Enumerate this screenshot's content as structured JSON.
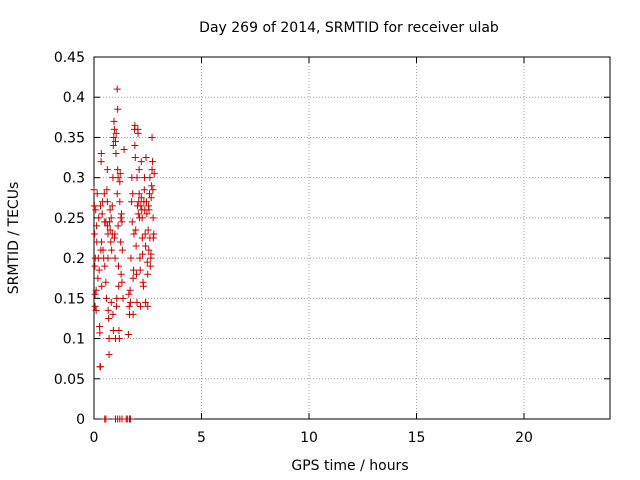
{
  "chart_data": {
    "type": "scatter",
    "title": "Day 269 of 2014, SRMTID for receiver ulab",
    "xlabel": "GPS time / hours",
    "ylabel": "SRMTID / TECUs",
    "xlim": [
      0,
      24
    ],
    "ylim": [
      0,
      0.45
    ],
    "xticks": [
      0,
      5,
      10,
      15,
      20
    ],
    "xtick_labels": [
      "0",
      "5",
      "10",
      "15",
      "20"
    ],
    "yticks": [
      0,
      0.05,
      0.1,
      0.15,
      0.2,
      0.25,
      0.3,
      0.35,
      0.4,
      0.45
    ],
    "ytick_labels": [
      "0",
      "0.05",
      "0.1",
      "0.15",
      "0.2",
      "0.25",
      "0.3",
      "0.35",
      "0.4",
      "0.45"
    ],
    "grid": true,
    "marker": "+",
    "color": "#cc0000",
    "points": [
      [
        0.0,
        0.285
      ],
      [
        0.02,
        0.265
      ],
      [
        0.03,
        0.23
      ],
      [
        0.04,
        0.19
      ],
      [
        0.05,
        0.155
      ],
      [
        0.05,
        0.14
      ],
      [
        0.06,
        0.2
      ],
      [
        0.08,
        0.26
      ],
      [
        0.1,
        0.16
      ],
      [
        0.1,
        0.135
      ],
      [
        0.12,
        0.24
      ],
      [
        0.13,
        0.22
      ],
      [
        0.15,
        0.28
      ],
      [
        0.18,
        0.175
      ],
      [
        0.2,
        0.2
      ],
      [
        0.22,
        0.25
      ],
      [
        0.24,
        0.185
      ],
      [
        0.26,
        0.115
      ],
      [
        0.27,
        0.107
      ],
      [
        0.28,
        0.065
      ],
      [
        0.3,
        0.065
      ],
      [
        0.3,
        0.265
      ],
      [
        0.32,
        0.21
      ],
      [
        0.33,
        0.32
      ],
      [
        0.34,
        0.33
      ],
      [
        0.35,
        0.22
      ],
      [
        0.36,
        0.165
      ],
      [
        0.38,
        0.255
      ],
      [
        0.4,
        0.27
      ],
      [
        0.42,
        0.21
      ],
      [
        0.45,
        0.2
      ],
      [
        0.48,
        0.28
      ],
      [
        0.5,
        0.245
      ],
      [
        0.5,
        0.19
      ],
      [
        0.55,
        0.245
      ],
      [
        0.55,
        0.17
      ],
      [
        0.58,
        0.15
      ],
      [
        0.6,
        0.285
      ],
      [
        0.62,
        0.31
      ],
      [
        0.62,
        0.27
      ],
      [
        0.63,
        0.24
      ],
      [
        0.65,
        0.23
      ],
      [
        0.65,
        0.2
      ],
      [
        0.66,
        0.135
      ],
      [
        0.68,
        0.125
      ],
      [
        0.7,
        0.08
      ],
      [
        0.7,
        0.1
      ],
      [
        0.72,
        0.245
      ],
      [
        0.75,
        0.26
      ],
      [
        0.75,
        0.235
      ],
      [
        0.78,
        0.22
      ],
      [
        0.8,
        0.25
      ],
      [
        0.8,
        0.145
      ],
      [
        0.82,
        0.21
      ],
      [
        0.85,
        0.265
      ],
      [
        0.85,
        0.23
      ],
      [
        0.88,
        0.3
      ],
      [
        0.88,
        0.13
      ],
      [
        0.9,
        0.11
      ],
      [
        0.9,
        0.34
      ],
      [
        0.92,
        0.35
      ],
      [
        0.93,
        0.37
      ],
      [
        0.95,
        0.36
      ],
      [
        0.95,
        0.225
      ],
      [
        0.97,
        0.23
      ],
      [
        0.98,
        0.2
      ],
      [
        1.0,
        0.345
      ],
      [
        1.0,
        0.1
      ],
      [
        1.02,
        0.33
      ],
      [
        1.03,
        0.355
      ],
      [
        1.05,
        0.14
      ],
      [
        1.06,
        0.15
      ],
      [
        1.08,
        0.41
      ],
      [
        1.08,
        0.28
      ],
      [
        1.1,
        0.31
      ],
      [
        1.1,
        0.385
      ],
      [
        1.12,
        0.3
      ],
      [
        1.12,
        0.24
      ],
      [
        1.14,
        0.19
      ],
      [
        1.15,
        0.165
      ],
      [
        1.16,
        0.11
      ],
      [
        1.18,
        0.1
      ],
      [
        1.2,
        0.27
      ],
      [
        1.2,
        0.295
      ],
      [
        1.22,
        0.305
      ],
      [
        1.24,
        0.22
      ],
      [
        1.25,
        0.25
      ],
      [
        1.26,
        0.18
      ],
      [
        1.28,
        0.255
      ],
      [
        1.3,
        0.245
      ],
      [
        1.3,
        0.17
      ],
      [
        1.32,
        0.21
      ],
      [
        1.35,
        0.15
      ],
      [
        1.4,
        0.335
      ],
      [
        1.6,
        0.105
      ],
      [
        1.62,
        0.155
      ],
      [
        1.64,
        0.14
      ],
      [
        1.65,
        0.13
      ],
      [
        1.68,
        0.16
      ],
      [
        1.7,
        0.145
      ],
      [
        1.72,
        0.2
      ],
      [
        1.75,
        0.27
      ],
      [
        1.76,
        0.3
      ],
      [
        1.78,
        0.245
      ],
      [
        1.8,
        0.28
      ],
      [
        1.82,
        0.13
      ],
      [
        1.82,
        0.175
      ],
      [
        1.84,
        0.185
      ],
      [
        1.86,
        0.23
      ],
      [
        1.88,
        0.36
      ],
      [
        1.9,
        0.365
      ],
      [
        1.9,
        0.34
      ],
      [
        1.92,
        0.325
      ],
      [
        1.94,
        0.235
      ],
      [
        1.96,
        0.215
      ],
      [
        1.98,
        0.18
      ],
      [
        2.0,
        0.3
      ],
      [
        2.0,
        0.145
      ],
      [
        2.02,
        0.265
      ],
      [
        2.04,
        0.36
      ],
      [
        2.05,
        0.355
      ],
      [
        2.06,
        0.255
      ],
      [
        2.08,
        0.27
      ],
      [
        2.1,
        0.31
      ],
      [
        2.1,
        0.28
      ],
      [
        2.12,
        0.25
      ],
      [
        2.14,
        0.2
      ],
      [
        2.15,
        0.185
      ],
      [
        2.16,
        0.14
      ],
      [
        2.18,
        0.265
      ],
      [
        2.2,
        0.32
      ],
      [
        2.2,
        0.275
      ],
      [
        2.22,
        0.26
      ],
      [
        2.24,
        0.25
      ],
      [
        2.25,
        0.225
      ],
      [
        2.26,
        0.205
      ],
      [
        2.28,
        0.17
      ],
      [
        2.3,
        0.165
      ],
      [
        2.32,
        0.27
      ],
      [
        2.34,
        0.285
      ],
      [
        2.35,
        0.3
      ],
      [
        2.36,
        0.26
      ],
      [
        2.38,
        0.23
      ],
      [
        2.4,
        0.215
      ],
      [
        2.4,
        0.145
      ],
      [
        2.42,
        0.325
      ],
      [
        2.44,
        0.27
      ],
      [
        2.46,
        0.255
      ],
      [
        2.48,
        0.195
      ],
      [
        2.5,
        0.18
      ],
      [
        2.5,
        0.14
      ],
      [
        2.52,
        0.235
      ],
      [
        2.54,
        0.265
      ],
      [
        2.55,
        0.21
      ],
      [
        2.56,
        0.26
      ],
      [
        2.58,
        0.28
      ],
      [
        2.6,
        0.3
      ],
      [
        2.6,
        0.225
      ],
      [
        2.62,
        0.19
      ],
      [
        2.64,
        0.2
      ],
      [
        2.65,
        0.205
      ],
      [
        2.66,
        0.275
      ],
      [
        2.68,
        0.29
      ],
      [
        2.7,
        0.31
      ],
      [
        2.7,
        0.35
      ],
      [
        2.72,
        0.32
      ],
      [
        2.74,
        0.285
      ],
      [
        2.75,
        0.25
      ],
      [
        2.76,
        0.225
      ],
      [
        2.78,
        0.23
      ],
      [
        2.8,
        0.305
      ],
      [
        0.5,
        0.0
      ],
      [
        0.55,
        0.0
      ],
      [
        1.0,
        0.0
      ],
      [
        1.1,
        0.0
      ],
      [
        1.2,
        0.0
      ],
      [
        1.3,
        0.0
      ],
      [
        1.5,
        0.0
      ],
      [
        1.55,
        0.0
      ],
      [
        1.65,
        0.0
      ],
      [
        1.7,
        0.0
      ]
    ]
  }
}
